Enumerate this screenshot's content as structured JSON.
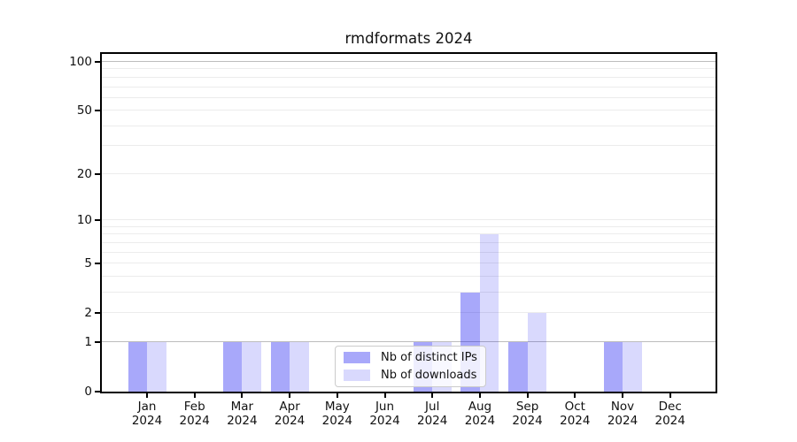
{
  "title": "rmdformats 2024",
  "chart_data": {
    "type": "bar",
    "title": "rmdformats 2024",
    "year_label": "2024",
    "months": [
      "Jan",
      "Feb",
      "Mar",
      "Apr",
      "May",
      "Jun",
      "Jul",
      "Aug",
      "Sep",
      "Oct",
      "Nov",
      "Dec"
    ],
    "series": [
      {
        "name": "Nb of distinct IPs",
        "color": "rgba(0,0,240,0.34)",
        "color_hex": "#a8a8fa",
        "values": [
          1,
          0,
          1,
          1,
          0,
          0,
          1,
          3,
          1,
          0,
          1,
          0
        ]
      },
      {
        "name": "Nb of downloads",
        "color": "rgba(0,0,240,0.15)",
        "color_hex": "#d9d9fc",
        "values": [
          1,
          0,
          1,
          1,
          0,
          0,
          1,
          8,
          2,
          0,
          1,
          0
        ]
      }
    ],
    "y_ticks": [
      0,
      1,
      2,
      5,
      10,
      20,
      50,
      100
    ],
    "grid_minor": [
      2,
      3,
      4,
      5,
      6,
      7,
      8,
      9,
      10,
      20,
      30,
      40,
      50,
      60,
      70,
      80,
      90
    ],
    "grid_major": [
      1,
      100
    ],
    "scale": "log1p",
    "axis_range_top": 100,
    "legend_position": "lower center",
    "colors": {
      "grid_minor": "#ececec",
      "grid_major": "#bdbdbd",
      "axis": "#000000",
      "background": "#ffffff"
    }
  }
}
